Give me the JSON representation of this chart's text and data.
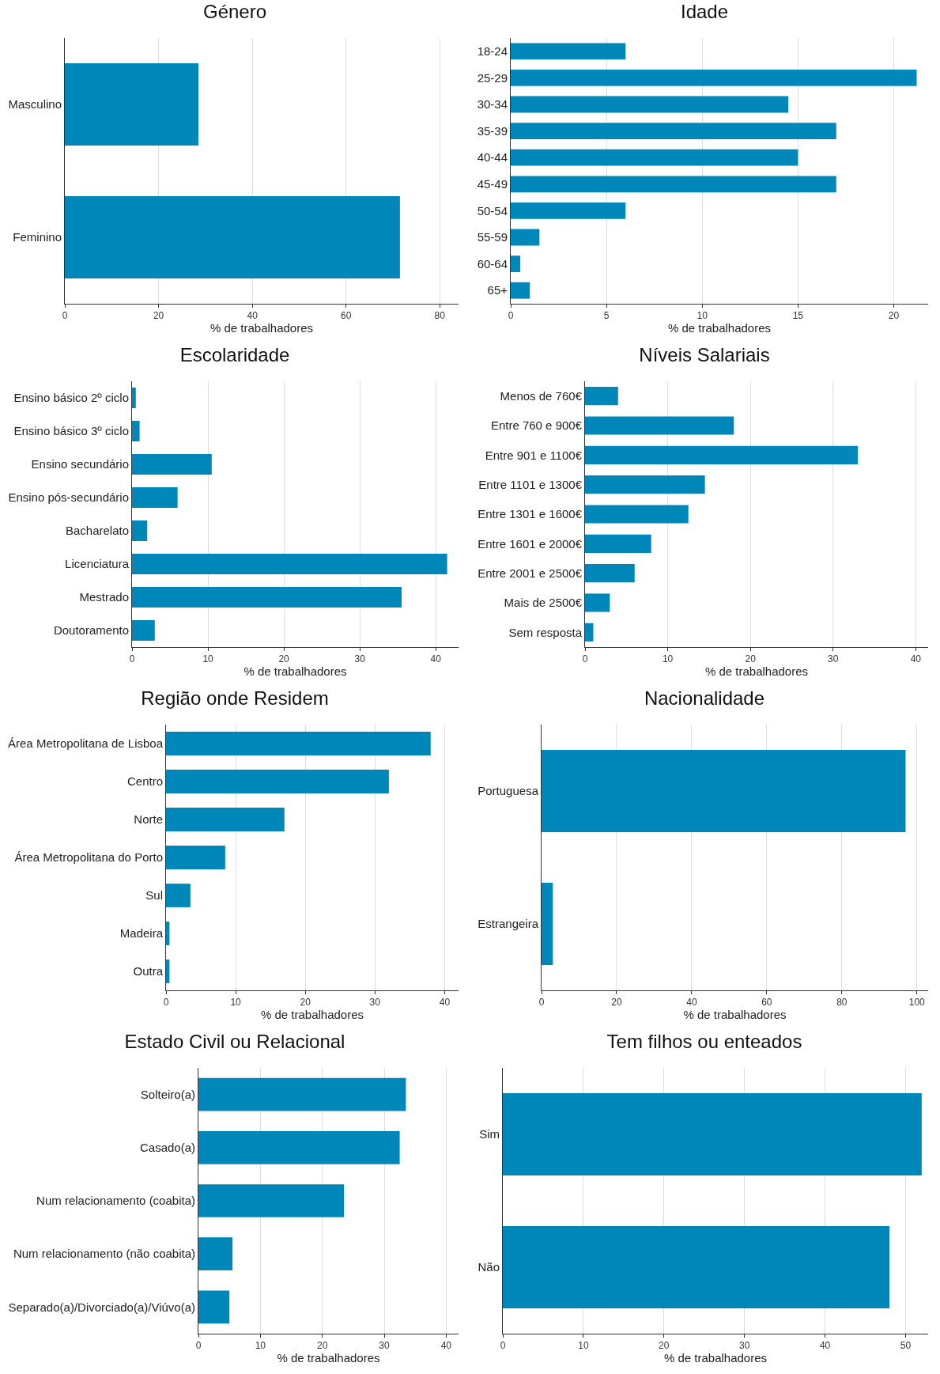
{
  "chart_data": [
    {
      "type": "bar",
      "orientation": "horizontal",
      "title": "Género",
      "xlabel": "% de trabalhadores",
      "categories": [
        "Masculino",
        "Feminino"
      ],
      "values": [
        28.5,
        71.5
      ],
      "color": "#0087b9",
      "xlim": [
        0,
        84
      ],
      "xticks": [
        0,
        20,
        40,
        60,
        80
      ],
      "grid": "x"
    },
    {
      "type": "bar",
      "orientation": "horizontal",
      "title": "Idade",
      "xlabel": "% de trabalhadores",
      "categories": [
        "18-24",
        "25-29",
        "30-34",
        "35-39",
        "40-44",
        "45-49",
        "50-54",
        "55-59",
        "60-64",
        "65+"
      ],
      "values": [
        6,
        21.2,
        14.5,
        17,
        15,
        17,
        6,
        1.5,
        0.5,
        1
      ],
      "color": "#0087b9",
      "xlim": [
        0,
        21.8
      ],
      "xticks": [
        0,
        5,
        10,
        15,
        20
      ],
      "grid": "x"
    },
    {
      "type": "bar",
      "orientation": "horizontal",
      "title": "Escolaridade",
      "xlabel": "% de trabalhadores",
      "categories": [
        "Ensino básico 2º ciclo",
        "Ensino básico 3º ciclo",
        "Ensino secundário",
        "Ensino pós-secundário",
        "Bacharelato",
        "Licenciatura",
        "Mestrado",
        "Doutoramento"
      ],
      "values": [
        0.5,
        1,
        10.5,
        6,
        2,
        41.5,
        35.5,
        3
      ],
      "color": "#0087b9",
      "xlim": [
        0,
        43
      ],
      "xticks": [
        0,
        10,
        20,
        30,
        40
      ],
      "grid": "x"
    },
    {
      "type": "bar",
      "orientation": "horizontal",
      "title": "Níveis Salariais",
      "xlabel": "% de trabalhadores",
      "categories": [
        "Menos de 760€",
        "Entre 760 e 900€",
        "Entre 901 e 1100€",
        "Entre 1101 e 1300€",
        "Entre 1301 e 1600€",
        "Entre 1601 e 2000€",
        "Entre 2001 e 2500€",
        "Mais de 2500€",
        "Sem resposta"
      ],
      "values": [
        4,
        18,
        33,
        14.5,
        12.5,
        8,
        6,
        3,
        1
      ],
      "color": "#0087b9",
      "xlim": [
        0,
        41.5
      ],
      "xticks": [
        0,
        10,
        20,
        30,
        40
      ],
      "grid": "x"
    },
    {
      "type": "bar",
      "orientation": "horizontal",
      "title": "Região onde Residem",
      "xlabel": "% de trabalhadores",
      "categories": [
        "Área Metropolitana de Lisboa",
        "Centro",
        "Norte",
        "Área Metropolitana do Porto",
        "Sul",
        "Madeira",
        "Outra"
      ],
      "values": [
        38,
        32,
        17,
        8.5,
        3.5,
        0.5,
        0.5
      ],
      "color": "#0087b9",
      "xlim": [
        0,
        42
      ],
      "xticks": [
        0,
        10,
        20,
        30,
        40
      ],
      "grid": "x"
    },
    {
      "type": "bar",
      "orientation": "horizontal",
      "title": "Nacionalidade",
      "xlabel": "% de trabalhadores",
      "categories": [
        "Portuguesa",
        "Estrangeira"
      ],
      "values": [
        97,
        3
      ],
      "color": "#0087b9",
      "xlim": [
        0,
        103
      ],
      "xticks": [
        0,
        20,
        40,
        60,
        80,
        100
      ],
      "grid": "x"
    },
    {
      "type": "bar",
      "orientation": "horizontal",
      "title": "Estado Civil ou Relacional",
      "xlabel": "% de trabalhadores",
      "categories": [
        "Solteiro(a)",
        "Casado(a)",
        "Num relacionamento (coabita)",
        "Num relacionamento (não coabita)",
        "Separado(a)/Divorciado(a)/Viúvo(a)"
      ],
      "values": [
        33.5,
        32.5,
        23.5,
        5.5,
        5
      ],
      "color": "#0087b9",
      "xlim": [
        0,
        42
      ],
      "xticks": [
        0,
        10,
        20,
        30,
        40
      ],
      "grid": "x"
    },
    {
      "type": "bar",
      "orientation": "horizontal",
      "title": "Tem filhos ou enteados",
      "xlabel": "% de trabalhadores",
      "categories": [
        "Sim",
        "Não"
      ],
      "values": [
        52,
        48
      ],
      "color": "#0087b9",
      "xlim": [
        0,
        52.8
      ],
      "xticks": [
        0,
        10,
        20,
        30,
        40,
        50
      ],
      "grid": "x"
    }
  ]
}
